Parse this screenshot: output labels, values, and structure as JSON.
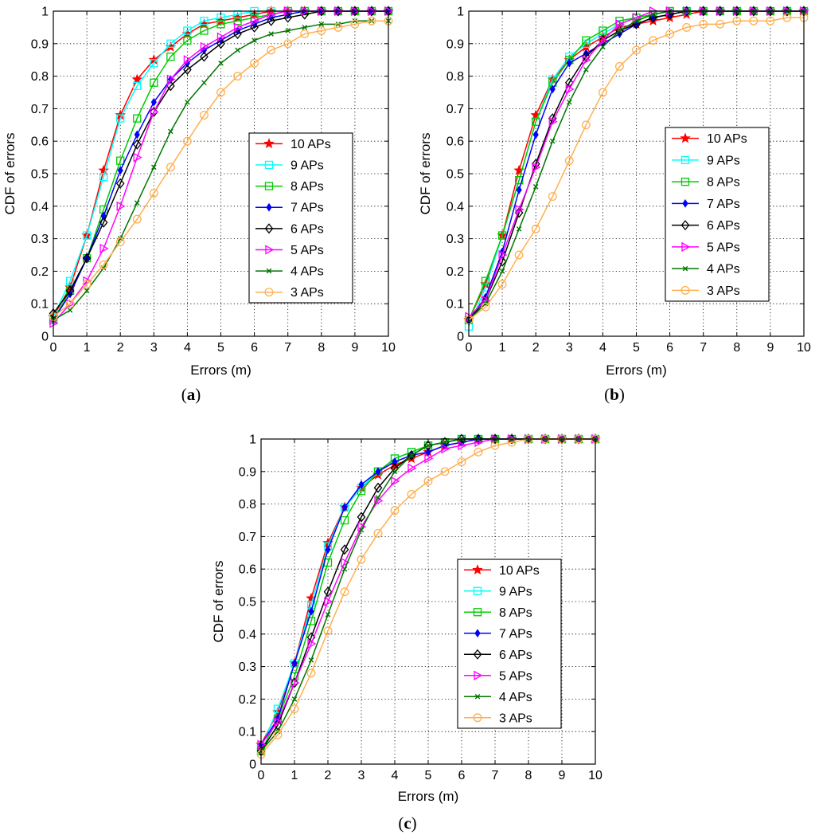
{
  "chart_data": [
    {
      "type": "line",
      "panel": "a",
      "xlabel": "Errors (m)",
      "ylabel": "CDF of errors",
      "xlim": [
        0,
        10
      ],
      "ylim": [
        0,
        1
      ],
      "xticks": [
        "0",
        "1",
        "2",
        "3",
        "4",
        "5",
        "6",
        "7",
        "8",
        "9",
        "10"
      ],
      "yticks": [
        "0",
        "0.1",
        "0.2",
        "0.3",
        "0.4",
        "0.5",
        "0.6",
        "0.7",
        "0.8",
        "0.9",
        "1"
      ],
      "grid": true,
      "legend_position": "center-right",
      "x": [
        0,
        0.5,
        1,
        1.5,
        2,
        2.5,
        3,
        3.5,
        4,
        4.5,
        5,
        5.5,
        6,
        6.5,
        7,
        7.5,
        8,
        8.5,
        9,
        9.5,
        10
      ],
      "series": [
        {
          "name": "10 APs",
          "color": "#ff0000",
          "marker": "star",
          "values": [
            0.06,
            0.15,
            0.31,
            0.51,
            0.68,
            0.79,
            0.85,
            0.89,
            0.93,
            0.96,
            0.97,
            0.98,
            0.99,
            1.0,
            1.0,
            1.0,
            1.0,
            1.0,
            1.0,
            1.0,
            1.0
          ]
        },
        {
          "name": "9 APs",
          "color": "#00ffff",
          "marker": "square",
          "values": [
            0.06,
            0.17,
            0.31,
            0.49,
            0.67,
            0.77,
            0.84,
            0.9,
            0.94,
            0.97,
            0.98,
            0.99,
            1.0,
            1.0,
            1.0,
            1.0,
            1.0,
            1.0,
            1.0,
            1.0,
            1.0
          ]
        },
        {
          "name": "8 APs",
          "color": "#00cc00",
          "marker": "square",
          "values": [
            0.05,
            0.14,
            0.24,
            0.39,
            0.54,
            0.67,
            0.78,
            0.86,
            0.91,
            0.94,
            0.96,
            0.97,
            0.98,
            0.99,
            1.0,
            1.0,
            1.0,
            1.0,
            1.0,
            1.0,
            1.0
          ]
        },
        {
          "name": "7 APs",
          "color": "#0000ff",
          "marker": "diamond-filled",
          "values": [
            0.05,
            0.13,
            0.24,
            0.37,
            0.51,
            0.62,
            0.72,
            0.79,
            0.84,
            0.88,
            0.91,
            0.94,
            0.96,
            0.98,
            0.99,
            1.0,
            1.0,
            1.0,
            1.0,
            1.0,
            1.0
          ]
        },
        {
          "name": "6 APs",
          "color": "#000000",
          "marker": "diamond",
          "values": [
            0.07,
            0.14,
            0.24,
            0.35,
            0.47,
            0.59,
            0.69,
            0.77,
            0.82,
            0.86,
            0.9,
            0.93,
            0.95,
            0.97,
            0.98,
            0.99,
            1.0,
            1.0,
            1.0,
            1.0,
            1.0
          ]
        },
        {
          "name": "5 APs",
          "color": "#ff00ff",
          "marker": "triangle-right",
          "values": [
            0.04,
            0.1,
            0.17,
            0.27,
            0.4,
            0.55,
            0.69,
            0.79,
            0.85,
            0.89,
            0.92,
            0.95,
            0.97,
            0.99,
            1.0,
            1.0,
            1.0,
            1.0,
            1.0,
            1.0,
            1.0
          ]
        },
        {
          "name": "4 APs",
          "color": "#007700",
          "marker": "x",
          "values": [
            0.05,
            0.08,
            0.14,
            0.21,
            0.3,
            0.41,
            0.52,
            0.63,
            0.72,
            0.78,
            0.84,
            0.88,
            0.91,
            0.93,
            0.94,
            0.95,
            0.96,
            0.96,
            0.97,
            0.97,
            0.97
          ]
        },
        {
          "name": "3 APs",
          "color": "#ffb050",
          "marker": "circle",
          "values": [
            0.06,
            0.1,
            0.16,
            0.22,
            0.29,
            0.36,
            0.44,
            0.52,
            0.6,
            0.68,
            0.75,
            0.8,
            0.84,
            0.88,
            0.9,
            0.93,
            0.94,
            0.95,
            0.96,
            0.97,
            0.97
          ]
        }
      ]
    },
    {
      "type": "line",
      "panel": "b",
      "xlabel": "Errors (m)",
      "ylabel": "CDF of errors",
      "xlim": [
        0,
        10
      ],
      "ylim": [
        0,
        1
      ],
      "xticks": [
        "0",
        "1",
        "2",
        "3",
        "4",
        "5",
        "6",
        "7",
        "8",
        "9",
        "10"
      ],
      "yticks": [
        "0",
        "0.1",
        "0.2",
        "0.3",
        "0.4",
        "0.5",
        "0.6",
        "0.7",
        "0.8",
        "0.9",
        "1"
      ],
      "grid": true,
      "legend_position": "center-right",
      "x": [
        0,
        0.5,
        1,
        1.5,
        2,
        2.5,
        3,
        3.5,
        4,
        4.5,
        5,
        5.5,
        6,
        6.5,
        7,
        7.5,
        8,
        8.5,
        9,
        9.5,
        10
      ],
      "series": [
        {
          "name": "10 APs",
          "color": "#ff0000",
          "marker": "star",
          "values": [
            0.05,
            0.16,
            0.31,
            0.51,
            0.68,
            0.79,
            0.85,
            0.89,
            0.92,
            0.95,
            0.96,
            0.97,
            0.98,
            0.99,
            1.0,
            1.0,
            1.0,
            1.0,
            1.0,
            1.0,
            1.0
          ]
        },
        {
          "name": "9 APs",
          "color": "#00ffff",
          "marker": "square",
          "values": [
            0.03,
            0.15,
            0.31,
            0.48,
            0.66,
            0.79,
            0.86,
            0.9,
            0.93,
            0.96,
            0.98,
            0.99,
            1.0,
            1.0,
            1.0,
            1.0,
            1.0,
            1.0,
            1.0,
            1.0,
            1.0
          ]
        },
        {
          "name": "8 APs",
          "color": "#00cc00",
          "marker": "square",
          "values": [
            0.05,
            0.17,
            0.31,
            0.48,
            0.66,
            0.78,
            0.85,
            0.91,
            0.94,
            0.97,
            0.98,
            0.99,
            1.0,
            1.0,
            1.0,
            1.0,
            1.0,
            1.0,
            1.0,
            1.0,
            1.0
          ]
        },
        {
          "name": "7 APs",
          "color": "#0000ff",
          "marker": "diamond-filled",
          "values": [
            0.05,
            0.12,
            0.26,
            0.45,
            0.62,
            0.76,
            0.84,
            0.87,
            0.9,
            0.93,
            0.96,
            0.98,
            0.99,
            1.0,
            1.0,
            1.0,
            1.0,
            1.0,
            1.0,
            1.0,
            1.0
          ]
        },
        {
          "name": "6 APs",
          "color": "#000000",
          "marker": "diamond",
          "values": [
            0.05,
            0.11,
            0.23,
            0.38,
            0.53,
            0.67,
            0.78,
            0.86,
            0.91,
            0.94,
            0.96,
            0.98,
            0.99,
            1.0,
            1.0,
            1.0,
            1.0,
            1.0,
            1.0,
            1.0,
            1.0
          ]
        },
        {
          "name": "5 APs",
          "color": "#ff00ff",
          "marker": "triangle-right",
          "values": [
            0.06,
            0.11,
            0.25,
            0.39,
            0.52,
            0.66,
            0.76,
            0.85,
            0.91,
            0.96,
            0.98,
            1.0,
            1.0,
            1.0,
            1.0,
            1.0,
            1.0,
            1.0,
            1.0,
            1.0,
            1.0
          ]
        },
        {
          "name": "4 APs",
          "color": "#007700",
          "marker": "x",
          "values": [
            0.05,
            0.1,
            0.2,
            0.33,
            0.46,
            0.6,
            0.72,
            0.82,
            0.89,
            0.94,
            0.97,
            0.99,
            1.0,
            1.0,
            1.0,
            1.0,
            1.0,
            1.0,
            1.0,
            1.0,
            1.0
          ]
        },
        {
          "name": "3 APs",
          "color": "#ffb050",
          "marker": "circle",
          "values": [
            0.05,
            0.09,
            0.16,
            0.25,
            0.33,
            0.43,
            0.54,
            0.65,
            0.75,
            0.83,
            0.88,
            0.91,
            0.93,
            0.95,
            0.96,
            0.96,
            0.97,
            0.97,
            0.97,
            0.98,
            0.98
          ]
        }
      ]
    },
    {
      "type": "line",
      "panel": "c",
      "xlabel": "Errors (m)",
      "ylabel": "CDF of errors",
      "xlim": [
        0,
        10
      ],
      "ylim": [
        0,
        1
      ],
      "xticks": [
        "0",
        "1",
        "2",
        "3",
        "4",
        "5",
        "6",
        "7",
        "8",
        "9",
        "10"
      ],
      "yticks": [
        "0",
        "0.1",
        "0.2",
        "0.3",
        "0.4",
        "0.5",
        "0.6",
        "0.7",
        "0.8",
        "0.9",
        "1"
      ],
      "grid": true,
      "legend_position": "center-right",
      "x": [
        0,
        0.5,
        1,
        1.5,
        2,
        2.5,
        3,
        3.5,
        4,
        4.5,
        5,
        5.5,
        6,
        6.5,
        7,
        7.5,
        8,
        8.5,
        9,
        9.5,
        10
      ],
      "series": [
        {
          "name": "10 APs",
          "color": "#ff0000",
          "marker": "star",
          "values": [
            0.06,
            0.16,
            0.31,
            0.51,
            0.68,
            0.79,
            0.85,
            0.89,
            0.92,
            0.94,
            0.96,
            0.98,
            0.99,
            1.0,
            1.0,
            1.0,
            1.0,
            1.0,
            1.0,
            1.0,
            1.0
          ]
        },
        {
          "name": "9 APs",
          "color": "#00ffff",
          "marker": "square",
          "values": [
            0.05,
            0.17,
            0.31,
            0.49,
            0.67,
            0.79,
            0.85,
            0.9,
            0.94,
            0.96,
            0.98,
            0.99,
            1.0,
            1.0,
            1.0,
            1.0,
            1.0,
            1.0,
            1.0,
            1.0,
            1.0
          ]
        },
        {
          "name": "8 APs",
          "color": "#00cc00",
          "marker": "square",
          "values": [
            0.04,
            0.14,
            0.27,
            0.44,
            0.62,
            0.75,
            0.84,
            0.9,
            0.94,
            0.96,
            0.98,
            0.99,
            1.0,
            1.0,
            1.0,
            1.0,
            1.0,
            1.0,
            1.0,
            1.0,
            1.0
          ]
        },
        {
          "name": "7 APs",
          "color": "#0000ff",
          "marker": "diamond-filled",
          "values": [
            0.06,
            0.14,
            0.31,
            0.47,
            0.66,
            0.79,
            0.86,
            0.9,
            0.93,
            0.95,
            0.96,
            0.98,
            0.99,
            1.0,
            1.0,
            1.0,
            1.0,
            1.0,
            1.0,
            1.0,
            1.0
          ]
        },
        {
          "name": "6 APs",
          "color": "#000000",
          "marker": "diamond",
          "values": [
            0.04,
            0.12,
            0.25,
            0.39,
            0.53,
            0.66,
            0.76,
            0.85,
            0.91,
            0.95,
            0.98,
            0.99,
            1.0,
            1.0,
            1.0,
            1.0,
            1.0,
            1.0,
            1.0,
            1.0,
            1.0
          ]
        },
        {
          "name": "5 APs",
          "color": "#ff00ff",
          "marker": "triangle-right",
          "values": [
            0.06,
            0.13,
            0.25,
            0.37,
            0.5,
            0.62,
            0.73,
            0.81,
            0.87,
            0.91,
            0.94,
            0.97,
            0.98,
            0.99,
            1.0,
            1.0,
            1.0,
            1.0,
            1.0,
            1.0,
            1.0
          ]
        },
        {
          "name": "4 APs",
          "color": "#007700",
          "marker": "x",
          "values": [
            0.04,
            0.1,
            0.2,
            0.32,
            0.46,
            0.6,
            0.72,
            0.82,
            0.9,
            0.95,
            0.98,
            0.99,
            1.0,
            1.0,
            1.0,
            1.0,
            1.0,
            1.0,
            1.0,
            1.0,
            1.0
          ]
        },
        {
          "name": "3 APs",
          "color": "#ffb050",
          "marker": "circle",
          "values": [
            0.03,
            0.09,
            0.17,
            0.28,
            0.41,
            0.53,
            0.63,
            0.71,
            0.78,
            0.83,
            0.87,
            0.9,
            0.93,
            0.96,
            0.98,
            0.99,
            1.0,
            1.0,
            1.0,
            1.0,
            1.0
          ]
        }
      ]
    }
  ],
  "panel_labels": {
    "a": {
      "open": "(",
      "letter": "a",
      "close": ")"
    },
    "b": {
      "open": "(",
      "letter": "b",
      "close": ")"
    },
    "c": {
      "open": "(",
      "letter": "c",
      "close": ")"
    }
  }
}
